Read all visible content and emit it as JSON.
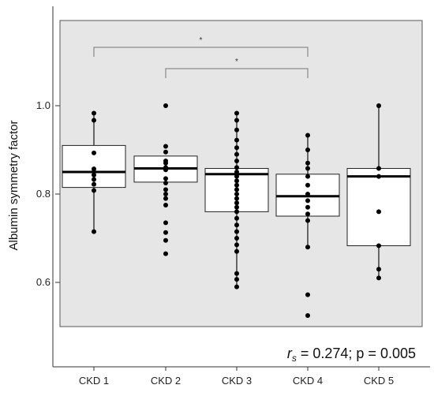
{
  "chart_data": {
    "type": "box",
    "ylabel": "Albumin symmetry factor",
    "ylim": [
      0.5,
      1.2
    ],
    "yticks": [
      {
        "value": 0.6,
        "label": "0.6"
      },
      {
        "value": 0.8,
        "label": "0.8"
      },
      {
        "value": 1.0,
        "label": "1.0"
      }
    ],
    "grid": false,
    "categories": [
      "CKD 1",
      "CKD 2",
      "CKD 3",
      "CKD 4",
      "CKD 5"
    ],
    "boxes": [
      {
        "category": "CKD 1",
        "whisker_low": 0.715,
        "q1": 0.815,
        "median": 0.85,
        "q3": 0.91,
        "whisker_high": 0.983
      },
      {
        "category": "CKD 2",
        "whisker_low": 0.827,
        "q1": 0.827,
        "median": 0.858,
        "q3": 0.886,
        "whisker_high": 0.886
      },
      {
        "category": "CKD 3",
        "whisker_low": 0.59,
        "q1": 0.76,
        "median": 0.845,
        "q3": 0.858,
        "whisker_high": 0.983
      },
      {
        "category": "CKD 4",
        "whisker_low": 0.68,
        "q1": 0.75,
        "median": 0.795,
        "q3": 0.845,
        "whisker_high": 0.933
      },
      {
        "category": "CKD 5",
        "whisker_low": 0.61,
        "q1": 0.683,
        "median": 0.84,
        "q3": 0.858,
        "whisker_high": 1.0
      }
    ],
    "points": [
      {
        "category": "CKD 1",
        "values": [
          0.983,
          0.967,
          0.893,
          0.857,
          0.85,
          0.843,
          0.833,
          0.822,
          0.808,
          0.715
        ]
      },
      {
        "category": "CKD 2",
        "values": [
          1.0,
          0.908,
          0.895,
          0.875,
          0.87,
          0.86,
          0.855,
          0.835,
          0.825,
          0.81,
          0.8,
          0.79,
          0.775,
          0.735,
          0.713,
          0.695,
          0.665
        ]
      },
      {
        "category": "CKD 3",
        "values": [
          0.983,
          0.967,
          0.945,
          0.922,
          0.905,
          0.89,
          0.875,
          0.86,
          0.85,
          0.84,
          0.83,
          0.82,
          0.81,
          0.8,
          0.79,
          0.78,
          0.77,
          0.76,
          0.745,
          0.73,
          0.715,
          0.7,
          0.685,
          0.67,
          0.62,
          0.607,
          0.59
        ]
      },
      {
        "category": "CKD 4",
        "values": [
          0.933,
          0.9,
          0.87,
          0.858,
          0.84,
          0.82,
          0.8,
          0.785,
          0.77,
          0.755,
          0.74,
          0.68,
          0.572,
          0.525
        ]
      },
      {
        "category": "CKD 5",
        "values": [
          1.0,
          0.858,
          0.84,
          0.76,
          0.683,
          0.63,
          0.61
        ]
      }
    ],
    "significance": [
      {
        "from": "CKD 1",
        "to": "CKD 4",
        "label": "*"
      },
      {
        "from": "CKD 2",
        "to": "CKD 4",
        "label": "*"
      }
    ],
    "annotation": {
      "r_symbol": "r",
      "r_subscript": "s",
      "text": " = 0.274; p = 0.005"
    }
  }
}
